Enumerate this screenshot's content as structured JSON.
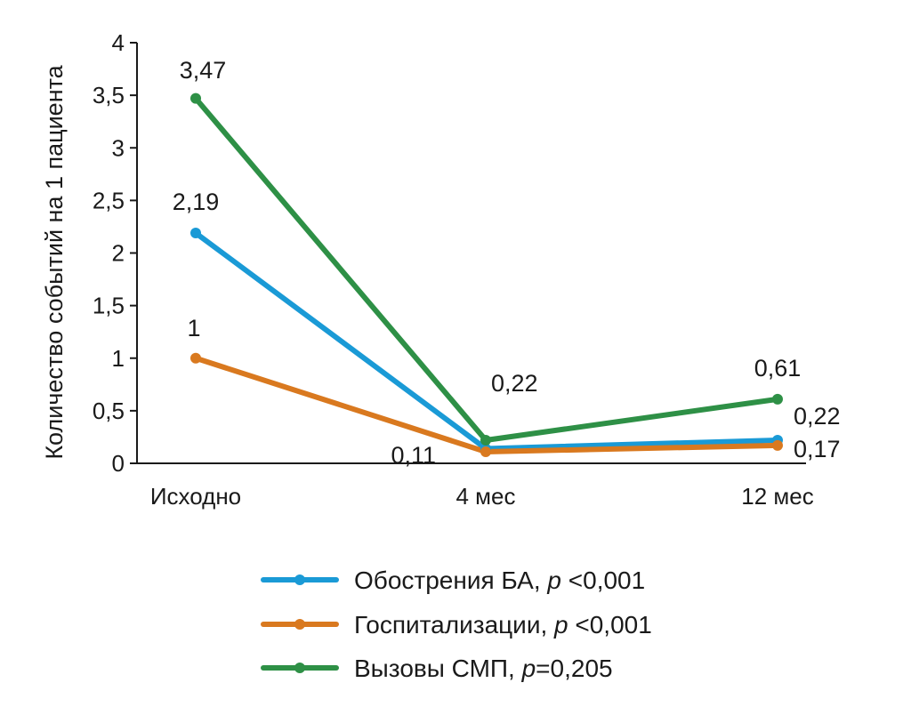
{
  "chart_data": {
    "type": "line",
    "categories": [
      "Исходно",
      "4 мес",
      "12 мес"
    ],
    "ylabel": "Количество событий на 1 пациента",
    "ylim": [
      0,
      4
    ],
    "yticks": [
      "0",
      "0,5",
      "1",
      "1,5",
      "2",
      "2,5",
      "3",
      "3,5",
      "4"
    ],
    "grid": false,
    "legend_position": "bottom",
    "series": [
      {
        "name": "Обострения БА",
        "p_label": "p",
        "p_rest": " <0,001",
        "color": "#1a9ad6",
        "values": [
          2.19,
          0.14,
          0.22
        ],
        "labels": [
          "2,19",
          "",
          "0,22"
        ]
      },
      {
        "name": "Госпитализации",
        "p_label": "p",
        "p_rest": " <0,001",
        "color": "#d9791f",
        "values": [
          1.0,
          0.11,
          0.17
        ],
        "labels": [
          "1",
          "0,11",
          "0,17"
        ]
      },
      {
        "name": "Вызовы СМП",
        "p_label": "p",
        "p_rest": "=0,205",
        "color": "#2e9046",
        "values": [
          3.47,
          0.22,
          0.61
        ],
        "labels": [
          "3,47",
          "0,22",
          "0,61"
        ]
      }
    ]
  }
}
